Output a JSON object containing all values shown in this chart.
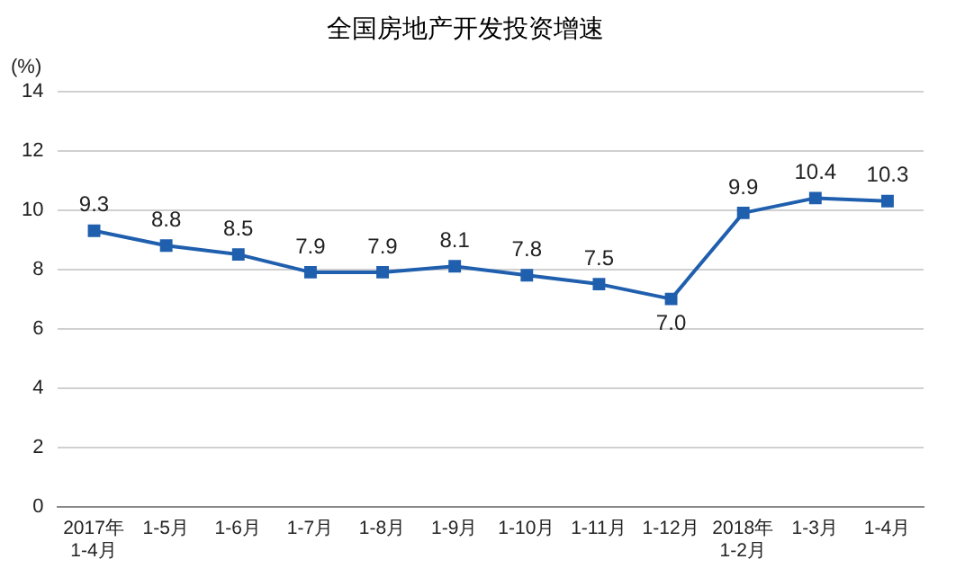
{
  "chart_data": {
    "type": "line",
    "title": "全国房地产开发投资增速",
    "ylabel": "(%)",
    "categories": [
      "2017年\n1-4月",
      "1-5月",
      "1-6月",
      "1-7月",
      "1-8月",
      "1-9月",
      "1-10月",
      "1-11月",
      "1-12月",
      "2018年\n1-2月",
      "1-3月",
      "1-4月"
    ],
    "series": [
      {
        "color": "#1f5fae",
        "values": [
          9.3,
          8.8,
          8.5,
          7.9,
          7.9,
          8.1,
          7.8,
          7.5,
          7.0,
          9.9,
          10.4,
          10.3
        ],
        "value_labels": [
          "9.3",
          "8.8",
          "8.5",
          "7.9",
          "7.9",
          "8.1",
          "7.8",
          "7.5",
          "7.0",
          "9.9",
          "10.4",
          "10.3"
        ]
      }
    ],
    "ylim": [
      0,
      14
    ],
    "yticks": [
      0,
      2,
      4,
      6,
      8,
      10,
      12,
      14
    ],
    "grid": "y",
    "legend": false,
    "marker": "square",
    "line_style": "solid"
  }
}
